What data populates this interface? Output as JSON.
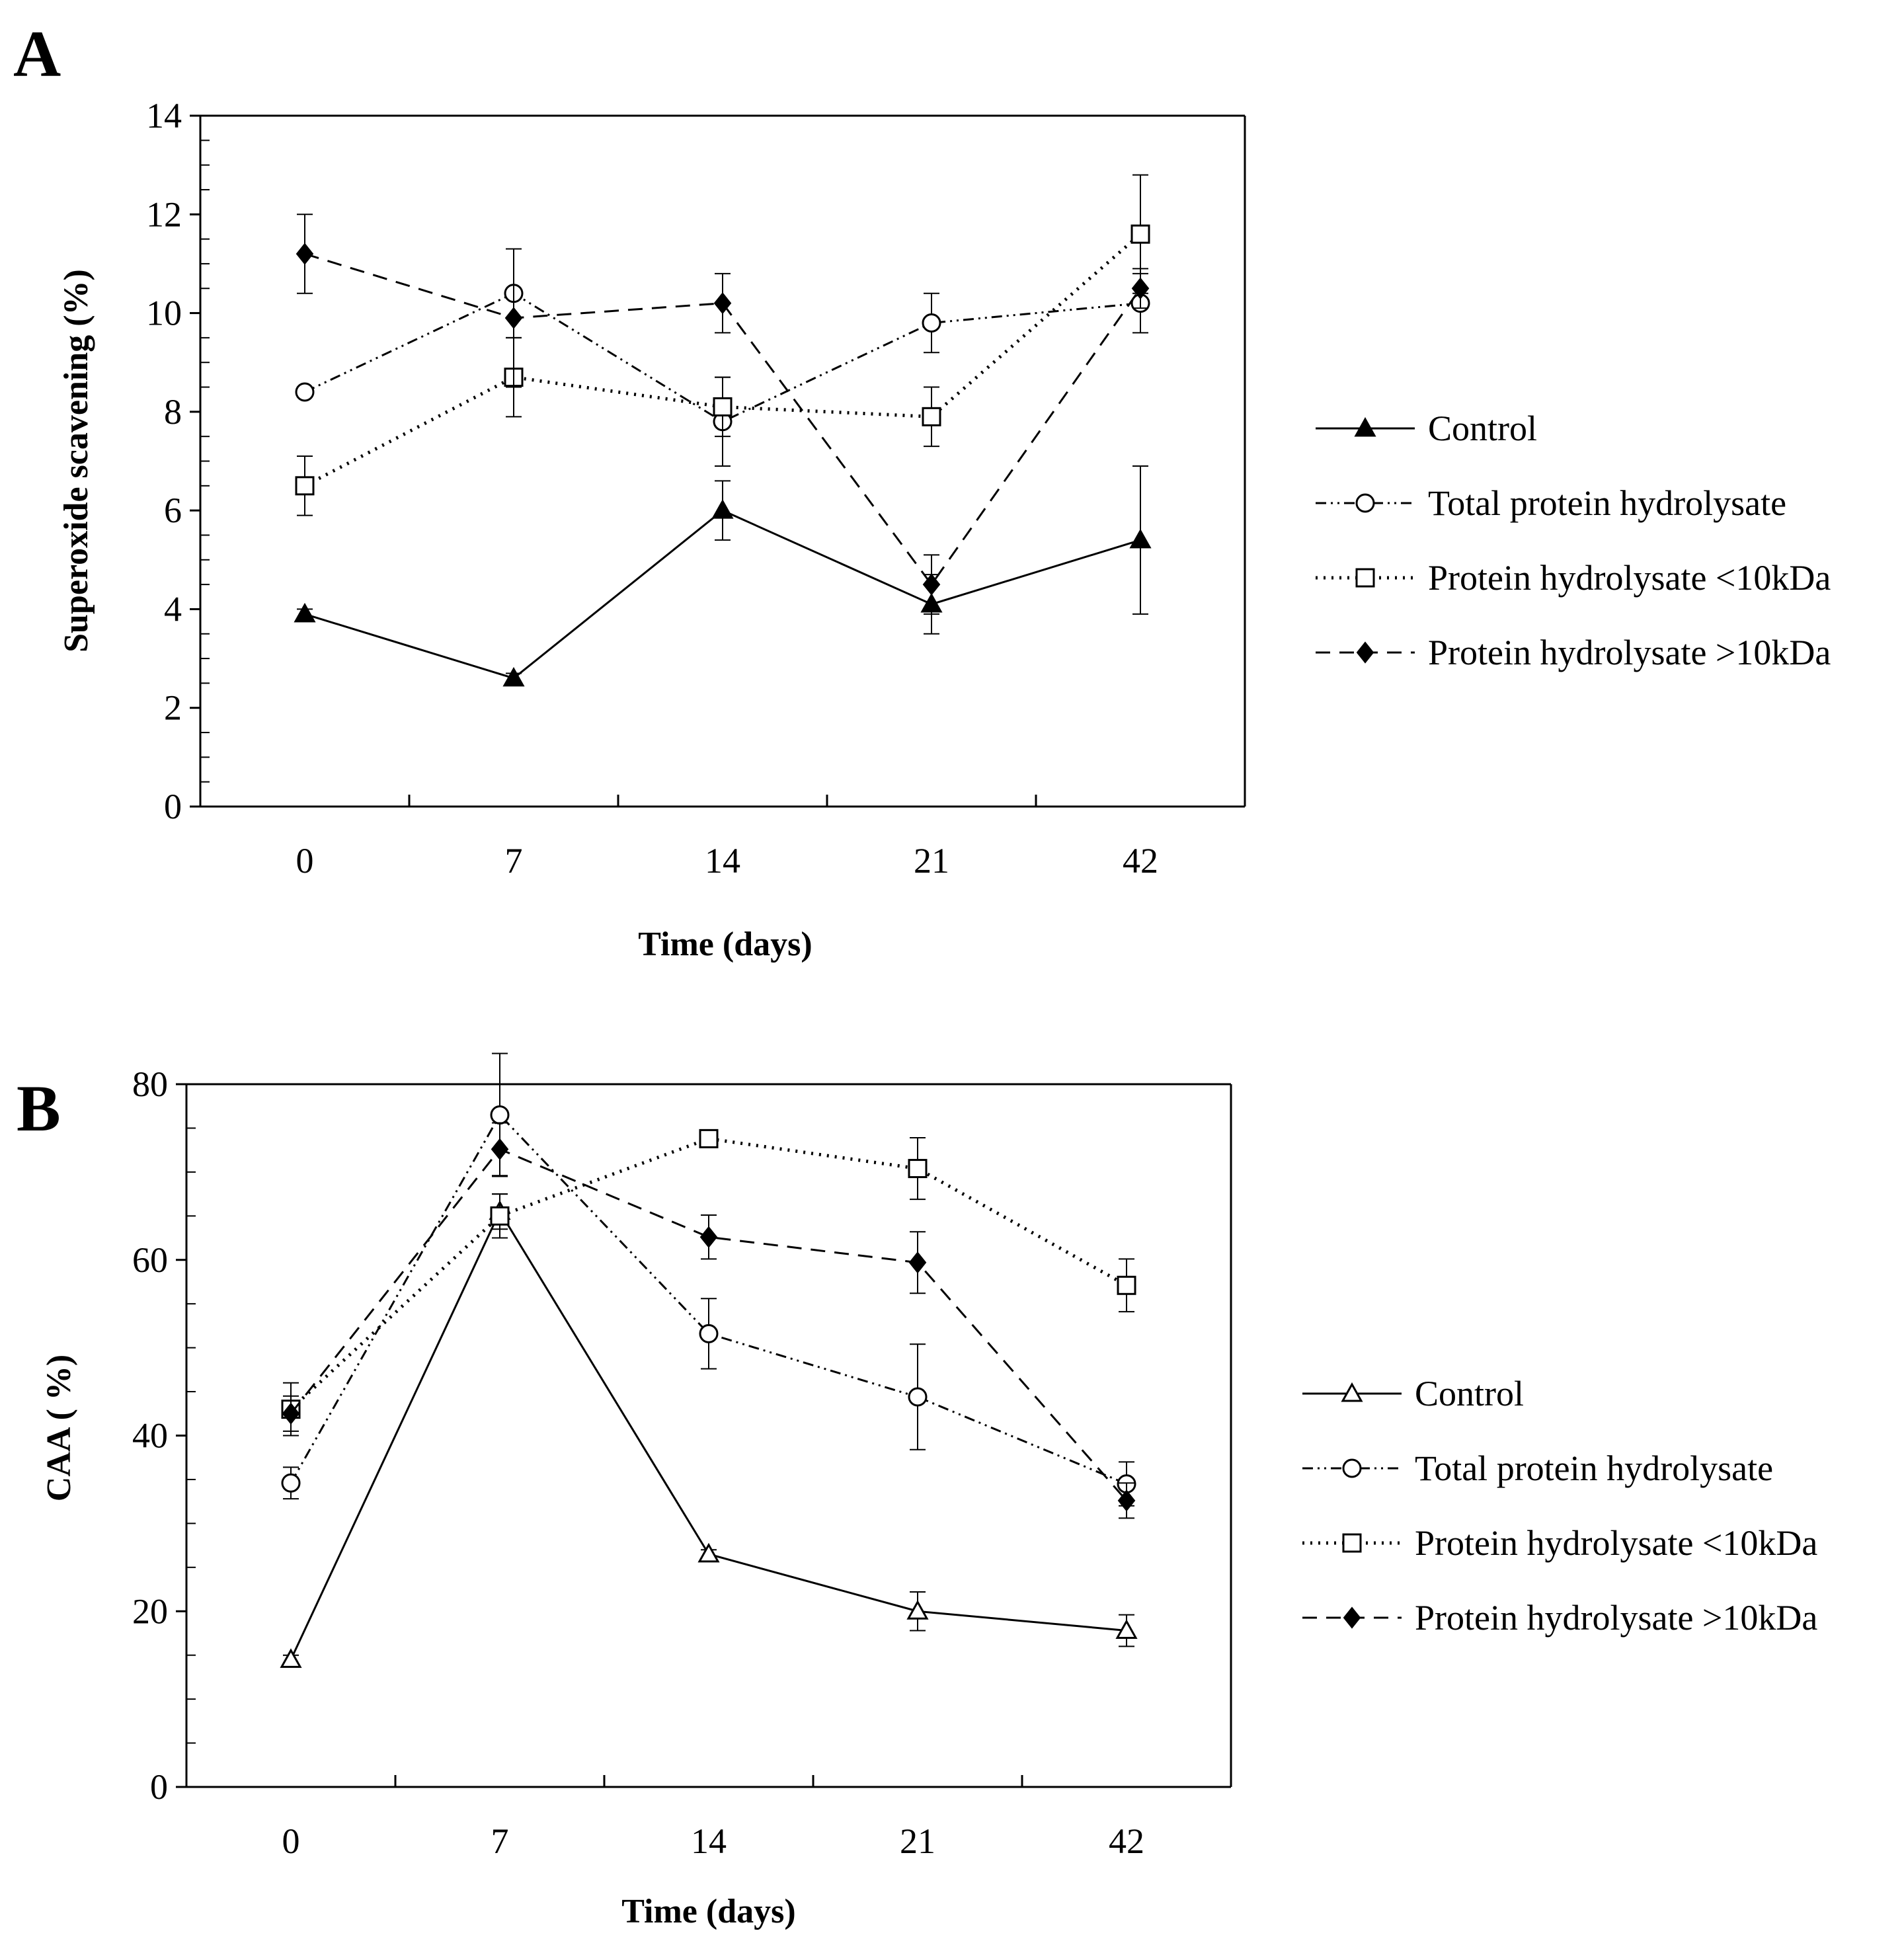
{
  "chart_data": [
    {
      "panel": "A",
      "type": "line",
      "xlabel": "Time (days)",
      "ylabel": "Superoxide scavening (%)",
      "categories": [
        "0",
        "7",
        "14",
        "21",
        "42"
      ],
      "yticks": [
        "0",
        "2",
        "4",
        "6",
        "8",
        "10",
        "12",
        "14"
      ],
      "ylim": [
        0,
        14
      ],
      "legend_position": "right",
      "series": [
        {
          "name": "Control",
          "style": "solid",
          "marker": "triangle-filled",
          "color": "#000000",
          "values": [
            3.9,
            2.6,
            6.0,
            4.1,
            5.4
          ],
          "errors": [
            0.1,
            0.1,
            0.6,
            0.6,
            1.5
          ]
        },
        {
          "name": "Total protein hydrolysate",
          "style": "dash-dot-dot",
          "marker": "circle-open",
          "color": "#000000",
          "values": [
            8.4,
            10.4,
            7.8,
            9.8,
            10.2
          ],
          "errors": [
            0.1,
            0.9,
            0.9,
            0.6,
            0.6
          ]
        },
        {
          "name": "Protein hydrolysate <10kDa",
          "style": "dotted",
          "marker": "square-open",
          "color": "#000000",
          "values": [
            6.5,
            8.7,
            8.1,
            7.9,
            11.6
          ],
          "errors": [
            0.6,
            0.8,
            0.6,
            0.6,
            1.2
          ]
        },
        {
          "name": "Protein hydrolysate >10kDa",
          "style": "dashed",
          "marker": "diamond-filled",
          "color": "#000000",
          "values": [
            11.2,
            9.9,
            10.2,
            4.5,
            10.5
          ],
          "errors": [
            0.8,
            1.4,
            0.6,
            0.6,
            0.4
          ]
        }
      ]
    },
    {
      "panel": "B",
      "type": "line",
      "xlabel": "Time (days)",
      "ylabel": "CAA ( %)",
      "categories": [
        "0",
        "7",
        "14",
        "21",
        "42"
      ],
      "yticks": [
        "0",
        "20",
        "40",
        "60",
        "80"
      ],
      "ylim": [
        0,
        80
      ],
      "legend_position": "right",
      "series": [
        {
          "name": "Control",
          "style": "solid",
          "marker": "triangle-open",
          "color": "#000000",
          "values": [
            14.5,
            65.5,
            26.5,
            20.0,
            17.8
          ],
          "errors": [
            0.5,
            2.0,
            0.5,
            2.2,
            1.8
          ]
        },
        {
          "name": "Total protein hydrolysate",
          "style": "dash-dot-dot",
          "marker": "circle-open",
          "color": "#000000",
          "values": [
            34.6,
            76.5,
            51.6,
            44.4,
            34.5
          ],
          "errors": [
            1.8,
            7.0,
            4.0,
            6.0,
            2.5
          ]
        },
        {
          "name": "Protein hydrolysate <10kDa",
          "style": "dotted",
          "marker": "square-open",
          "color": "#000000",
          "values": [
            43.0,
            65.0,
            73.8,
            70.4,
            57.1
          ],
          "errors": [
            3.0,
            2.5,
            0.8,
            3.5,
            3.0
          ]
        },
        {
          "name": "Protein hydrolysate >10kDa",
          "style": "dashed",
          "marker": "diamond-filled",
          "color": "#000000",
          "values": [
            42.5,
            72.6,
            62.6,
            59.7,
            32.6
          ],
          "errors": [
            2.0,
            3.0,
            2.5,
            3.5,
            2.0
          ]
        }
      ]
    }
  ]
}
